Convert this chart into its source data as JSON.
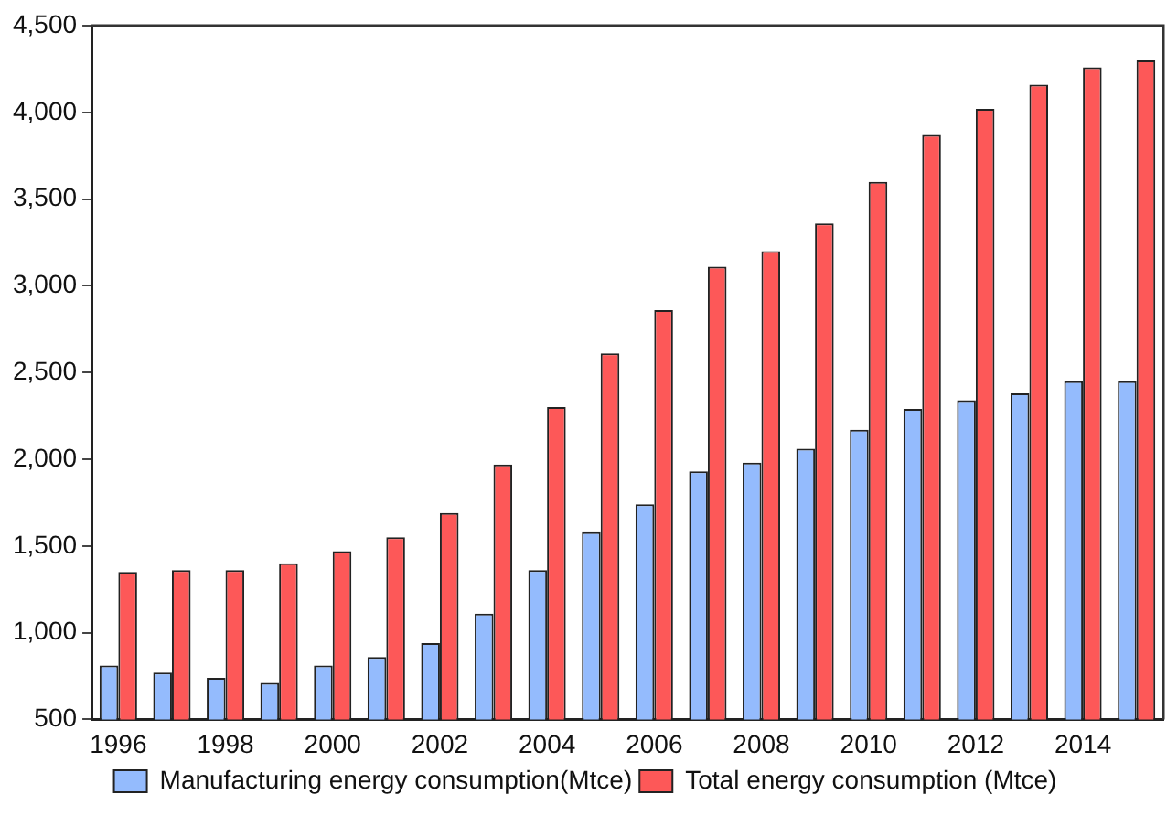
{
  "chart_data": {
    "type": "bar",
    "categories": [
      "1996",
      null,
      "1998",
      null,
      "2000",
      null,
      "2002",
      null,
      "2004",
      null,
      "2006",
      null,
      "2008",
      null,
      "2010",
      null,
      "2012",
      null,
      "2014",
      null
    ],
    "series": [
      {
        "name": "Manufacturing energy consumption(Mtce)",
        "color": "#94bbfd",
        "values": [
          810,
          770,
          740,
          710,
          810,
          860,
          940,
          1110,
          1360,
          1580,
          1740,
          1930,
          1980,
          2060,
          2170,
          2290,
          2340,
          2380,
          2450,
          2450
        ]
      },
      {
        "name": "Total energy consumption (Mtce)",
        "color": "#fd5858",
        "values": [
          1350,
          1360,
          1360,
          1400,
          1470,
          1550,
          1690,
          1970,
          2300,
          2610,
          2860,
          3110,
          3200,
          3360,
          3600,
          3870,
          4020,
          4160,
          4260,
          4300
        ]
      }
    ],
    "ylim": [
      500,
      4500
    ],
    "yticks": [
      {
        "value": 500,
        "label": "500"
      },
      {
        "value": 1000,
        "label": "1,000"
      },
      {
        "value": 1500,
        "label": "1,500"
      },
      {
        "value": 2000,
        "label": "2,000"
      },
      {
        "value": 2500,
        "label": "2,500"
      },
      {
        "value": 3000,
        "label": "3,000"
      },
      {
        "value": 3500,
        "label": "3,500"
      },
      {
        "value": 4000,
        "label": "4,000"
      },
      {
        "value": 4500,
        "label": "4,500"
      }
    ],
    "grid": false,
    "legend": "bottom"
  }
}
